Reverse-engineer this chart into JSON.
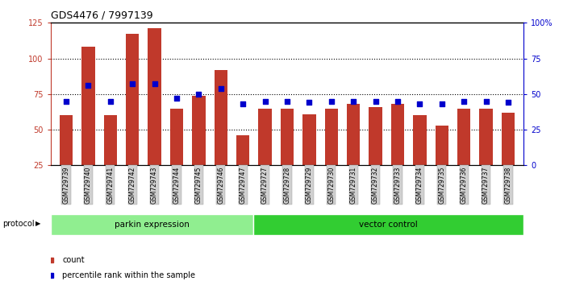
{
  "title": "GDS4476 / 7997139",
  "samples": [
    "GSM729739",
    "GSM729740",
    "GSM729741",
    "GSM729742",
    "GSM729743",
    "GSM729744",
    "GSM729745",
    "GSM729746",
    "GSM729747",
    "GSM729727",
    "GSM729728",
    "GSM729729",
    "GSM729730",
    "GSM729731",
    "GSM729732",
    "GSM729733",
    "GSM729734",
    "GSM729735",
    "GSM729736",
    "GSM729737",
    "GSM729738"
  ],
  "counts": [
    60,
    108,
    60,
    117,
    121,
    65,
    74,
    92,
    46,
    65,
    65,
    61,
    65,
    68,
    66,
    68,
    60,
    53,
    65,
    65,
    62
  ],
  "percentile_ranks": [
    45,
    54,
    45,
    55,
    55,
    47,
    50,
    53,
    43,
    45,
    45,
    44,
    45,
    45,
    45,
    45,
    43,
    43,
    45,
    45,
    44
  ],
  "groups": [
    {
      "label": "parkin expression",
      "start": 0,
      "end": 9,
      "color": "#90EE90"
    },
    {
      "label": "vector control",
      "start": 9,
      "end": 21,
      "color": "#32CD32"
    }
  ],
  "bar_color": "#C0392B",
  "percentile_color": "#0000CC",
  "left_axis_color": "#C0392B",
  "right_axis_color": "#0000CC",
  "ylim_left": [
    25,
    125
  ],
  "ylim_right": [
    0,
    100
  ],
  "left_yticks": [
    25,
    50,
    75,
    100,
    125
  ],
  "right_yticks": [
    0,
    25,
    50,
    75,
    100
  ],
  "right_yticklabels": [
    "0",
    "25",
    "50",
    "75",
    "100%"
  ],
  "grid_values": [
    50,
    75,
    100
  ],
  "legend_count_label": "count",
  "legend_percentile_label": "percentile rank within the sample",
  "protocol_label": "protocol",
  "bar_width": 0.6
}
